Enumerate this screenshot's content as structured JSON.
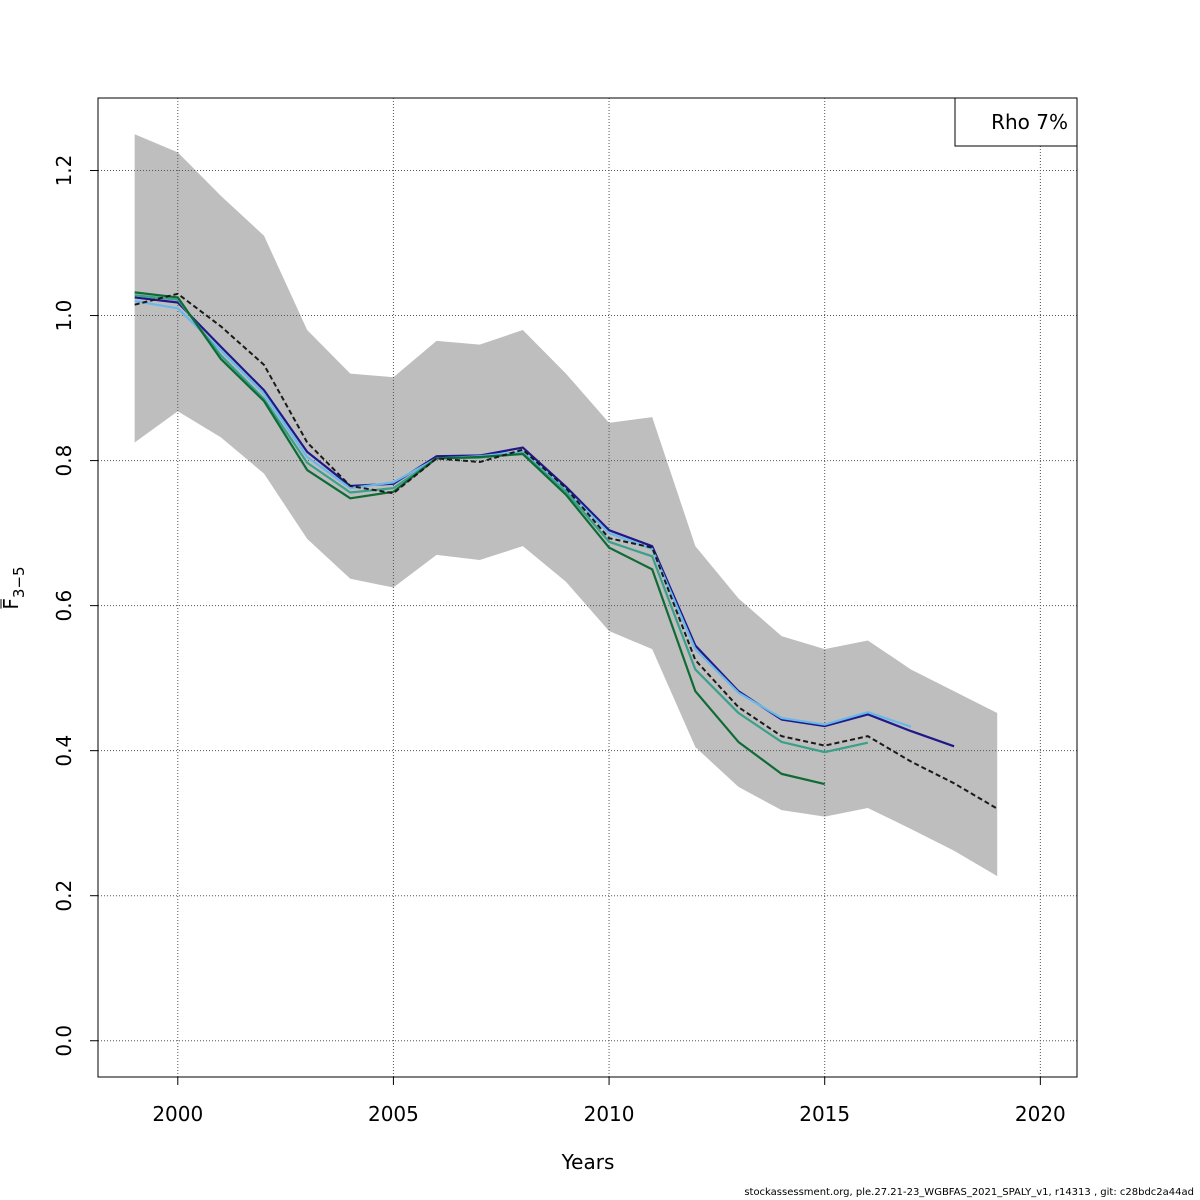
{
  "chart_data": {
    "type": "line",
    "xlabel": "Years",
    "ylabel_main": "F",
    "ylabel_sub": "3−5",
    "xlim": [
      1998.15,
      2020.85
    ],
    "ylim": [
      -0.05,
      1.3
    ],
    "x_ticks": [
      2000,
      2005,
      2010,
      2015,
      2020
    ],
    "y_ticks": [
      0.0,
      0.2,
      0.4,
      0.6,
      0.8,
      1.0,
      1.2
    ],
    "x_tick_labels": [
      "2000",
      "2005",
      "2010",
      "2015",
      "2020"
    ],
    "y_tick_labels": [
      "0.0",
      "0.2",
      "0.4",
      "0.6",
      "0.8",
      "1.0",
      "1.2"
    ],
    "grid": true,
    "legend": {
      "position": "top-right",
      "text": "Rho 7%"
    },
    "band": {
      "color": "#bebebe",
      "x": [
        1999,
        2000,
        2001,
        2002,
        2003,
        2004,
        2005,
        2006,
        2007,
        2008,
        2009,
        2010,
        2011,
        2012,
        2013,
        2014,
        2015,
        2016,
        2017,
        2018,
        2019
      ],
      "upper": [
        1.25,
        1.225,
        1.165,
        1.11,
        0.98,
        0.92,
        0.915,
        0.965,
        0.96,
        0.98,
        0.92,
        0.852,
        0.86,
        0.682,
        0.61,
        0.558,
        0.54,
        0.552,
        0.512,
        0.482,
        0.452
      ],
      "lower": [
        0.825,
        0.868,
        0.832,
        0.782,
        0.692,
        0.637,
        0.625,
        0.67,
        0.663,
        0.682,
        0.633,
        0.565,
        0.54,
        0.405,
        0.35,
        0.318,
        0.309,
        0.321,
        0.292,
        0.262,
        0.227
      ]
    },
    "series": [
      {
        "color": "#20178a",
        "dashed": false,
        "x": [
          1999,
          2000,
          2001,
          2002,
          2003,
          2004,
          2005,
          2006,
          2007,
          2008,
          2009,
          2010,
          2011,
          2012,
          2013,
          2014,
          2015,
          2016,
          2017,
          2018
        ],
        "values": [
          1.025,
          1.018,
          0.957,
          0.897,
          0.812,
          0.765,
          0.768,
          0.806,
          0.807,
          0.818,
          0.764,
          0.704,
          0.682,
          0.545,
          0.482,
          0.443,
          0.434,
          0.45,
          0.427,
          0.406
        ]
      },
      {
        "color": "#6ab8e8",
        "dashed": false,
        "x": [
          1999,
          2000,
          2001,
          2002,
          2003,
          2004,
          2005,
          2006,
          2007,
          2008,
          2009,
          2010,
          2011,
          2012,
          2013,
          2014,
          2015,
          2016,
          2017
        ],
        "values": [
          1.02,
          1.01,
          0.952,
          0.892,
          0.805,
          0.762,
          0.77,
          0.803,
          0.806,
          0.812,
          0.76,
          0.7,
          0.678,
          0.54,
          0.48,
          0.445,
          0.436,
          0.453,
          0.433
        ]
      },
      {
        "color": "#3aa08a",
        "dashed": false,
        "x": [
          1999,
          2000,
          2001,
          2002,
          2003,
          2004,
          2005,
          2006,
          2007,
          2008,
          2009,
          2010,
          2011,
          2012,
          2013,
          2014,
          2015,
          2016
        ],
        "values": [
          1.028,
          1.022,
          0.945,
          0.885,
          0.797,
          0.756,
          0.762,
          0.803,
          0.804,
          0.81,
          0.757,
          0.688,
          0.668,
          0.512,
          0.452,
          0.412,
          0.398,
          0.411
        ]
      },
      {
        "color": "#0f6b35",
        "dashed": false,
        "x": [
          1999,
          2000,
          2001,
          2002,
          2003,
          2004,
          2005,
          2006,
          2007,
          2008,
          2009,
          2010,
          2011,
          2012,
          2013,
          2014,
          2015
        ],
        "values": [
          1.032,
          1.025,
          0.94,
          0.882,
          0.787,
          0.748,
          0.757,
          0.803,
          0.805,
          0.809,
          0.753,
          0.68,
          0.65,
          0.482,
          0.412,
          0.368,
          0.354
        ]
      },
      {
        "color": "#1a1a1a",
        "dashed": true,
        "x": [
          1999,
          2000,
          2001,
          2002,
          2003,
          2004,
          2005,
          2006,
          2007,
          2008,
          2009,
          2010,
          2011,
          2012,
          2013,
          2014,
          2015,
          2016,
          2017,
          2018,
          2019
        ],
        "values": [
          1.015,
          1.03,
          0.985,
          0.932,
          0.825,
          0.765,
          0.755,
          0.803,
          0.798,
          0.815,
          0.762,
          0.693,
          0.68,
          0.525,
          0.46,
          0.42,
          0.407,
          0.42,
          0.385,
          0.355,
          0.32
        ]
      }
    ]
  },
  "footer": {
    "text": "stockassessment.org, ple.27.21-23_WGBFAS_2021_SPALY_v1, r14313 , git: c28bdc2a44ad"
  }
}
